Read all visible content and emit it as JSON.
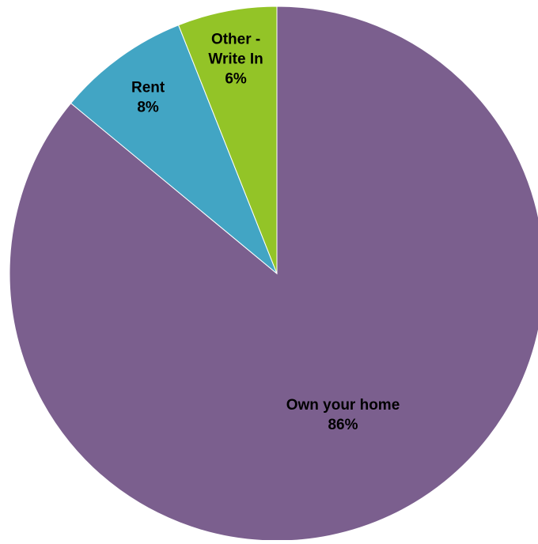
{
  "chart_data": {
    "type": "pie",
    "title": "",
    "start_angle_deg": 0,
    "direction": "clockwise",
    "slices": [
      {
        "label": "Own your home",
        "label_lines": [
          "Own your home"
        ],
        "value": 86,
        "value_label": "86%",
        "color": "#7B5F8E"
      },
      {
        "label": "Rent",
        "label_lines": [
          "Rent"
        ],
        "value": 8,
        "value_label": "8%",
        "color": "#42A5C4"
      },
      {
        "label": "Other - Write In",
        "label_lines": [
          "Other -",
          "Write In"
        ],
        "value": 6,
        "value_label": "6%",
        "color": "#93C427"
      }
    ],
    "legend": "none",
    "data_labels": "inside"
  }
}
